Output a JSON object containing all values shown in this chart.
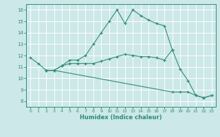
{
  "xlabel": "Humidex (Indice chaleur)",
  "xlim": [
    -0.5,
    23.5
  ],
  "ylim": [
    7.5,
    16.5
  ],
  "xticks": [
    0,
    1,
    2,
    3,
    4,
    5,
    6,
    7,
    8,
    9,
    10,
    11,
    12,
    13,
    14,
    15,
    16,
    17,
    18,
    19,
    20,
    21,
    22,
    23
  ],
  "yticks": [
    8,
    9,
    10,
    11,
    12,
    13,
    14,
    15,
    16
  ],
  "line_color": "#2e8b77",
  "bg_color": "#cce8e8",
  "line1_x": [
    0,
    1,
    2,
    3,
    4,
    5,
    6,
    7,
    8,
    9,
    10,
    11,
    12,
    13,
    14,
    15,
    16,
    17,
    18
  ],
  "line1_y": [
    11.8,
    11.3,
    10.7,
    10.7,
    11.1,
    11.6,
    11.6,
    12.0,
    13.0,
    14.0,
    15.0,
    16.0,
    14.8,
    16.0,
    15.5,
    15.1,
    14.8,
    14.6,
    12.5
  ],
  "line2_x": [
    2,
    3,
    4,
    5,
    6,
    7,
    8,
    9,
    10,
    11,
    12,
    13,
    14,
    15,
    16,
    17,
    18,
    19,
    20,
    21,
    22,
    23
  ],
  "line2_y": [
    10.7,
    10.7,
    11.1,
    11.3,
    11.3,
    11.3,
    11.3,
    11.5,
    11.7,
    11.9,
    12.1,
    12.0,
    11.9,
    11.9,
    11.8,
    11.6,
    12.5,
    10.8,
    9.8,
    8.5,
    8.3,
    8.5
  ],
  "line3_x": [
    2,
    3,
    18,
    19,
    20,
    21,
    22,
    23
  ],
  "line3_y": [
    10.7,
    10.7,
    8.8,
    8.8,
    8.8,
    8.5,
    8.3,
    8.5
  ]
}
